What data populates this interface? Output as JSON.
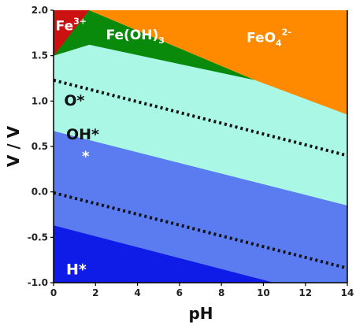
{
  "chart_data": {
    "type": "area",
    "xlabel": "pH",
    "ylabel": "V / V",
    "xlim": [
      0,
      14
    ],
    "ylim": [
      -1.0,
      2.0
    ],
    "x_ticks": [
      0,
      2,
      4,
      6,
      8,
      10,
      12,
      14
    ],
    "y_ticks": [
      -1.0,
      -0.5,
      0.0,
      0.5,
      1.0,
      1.5,
      2.0
    ],
    "x_tick_labels": [
      "0",
      "2",
      "4",
      "6",
      "8",
      "10",
      "12",
      "14"
    ],
    "y_tick_labels": [
      "-1.0",
      "-0.5",
      "0.0",
      "0.5",
      "1.0",
      "1.5",
      "2.0"
    ],
    "regions": [
      {
        "name": "background-region",
        "color": "#5A7CF0",
        "polygon": [
          [
            0,
            -1.0
          ],
          [
            14,
            -1.0
          ],
          [
            14,
            2.0
          ],
          [
            0,
            2.0
          ]
        ]
      },
      {
        "name": "h-star-region",
        "label": "H*",
        "color": "#0F1BE6",
        "polygon": [
          [
            0,
            -0.37
          ],
          [
            10.5,
            -1.0
          ],
          [
            0,
            -1.0
          ]
        ]
      },
      {
        "name": "oh-star-region",
        "label": "OH*",
        "color": "#00FFFF",
        "polygon": [
          [
            0,
            0.83
          ],
          [
            14,
            0.0
          ],
          [
            14,
            2.0
          ],
          [
            0,
            2.0
          ]
        ]
      },
      {
        "name": "o-star-region",
        "label": "O*",
        "color": "#AAF7E6",
        "polygon": [
          [
            0,
            0.67
          ],
          [
            14,
            -0.15
          ],
          [
            14,
            2.0
          ],
          [
            0,
            2.0
          ]
        ]
      },
      {
        "name": "fe3-region",
        "label": "Fe3+",
        "color": "#CC1111",
        "polygon": [
          [
            0,
            1.5
          ],
          [
            1.7,
            1.62
          ],
          [
            1.7,
            2.0
          ],
          [
            0,
            2.0
          ]
        ]
      },
      {
        "name": "feoh3-region",
        "label": "Fe(OH)3",
        "color": "#0A8A0A",
        "polygon": [
          [
            0,
            1.5
          ],
          [
            1.7,
            1.62
          ],
          [
            9.6,
            1.23
          ],
          [
            1.7,
            2.0
          ]
        ]
      },
      {
        "name": "feo4-region",
        "label": "FeO4 2-",
        "color": "#FF8A00",
        "polygon": [
          [
            1.7,
            2.0
          ],
          [
            9.6,
            1.23
          ],
          [
            14,
            0.85
          ],
          [
            14,
            2.0
          ]
        ]
      }
    ],
    "dotted_lines": [
      {
        "name": "upper-dotted-line",
        "x": [
          0,
          14
        ],
        "y": [
          1.23,
          0.4
        ]
      },
      {
        "name": "lower-dotted-line",
        "x": [
          0,
          14
        ],
        "y": [
          -0.01,
          -0.84
        ]
      }
    ],
    "annotations": [
      {
        "name": "fe3-label",
        "base": "Fe",
        "superscript": "3+",
        "x": 0.1,
        "y": 1.78,
        "color": "#ffffff",
        "size": 17
      },
      {
        "name": "feoh3-label",
        "base": "Fe(OH)",
        "subscript": "3",
        "x": 2.5,
        "y": 1.68,
        "color": "#ffffff",
        "size": 17
      },
      {
        "name": "feo4-label",
        "base": "FeO",
        "subscript": "4",
        "superscript": "2-",
        "x": 9.2,
        "y": 1.65,
        "color": "#ffffff",
        "size": 17
      },
      {
        "name": "o-star-label",
        "base": "O*",
        "x": 0.5,
        "y": 0.95,
        "color": "#111111",
        "size": 19
      },
      {
        "name": "oh-star-label",
        "base": "OH*",
        "x": 0.6,
        "y": 0.58,
        "color": "#111111",
        "size": 19
      },
      {
        "name": "star-label",
        "base": "*",
        "x": 1.35,
        "y": 0.34,
        "color": "#ffffff",
        "size": 18
      },
      {
        "name": "h-star-label",
        "base": "H*",
        "x": 0.6,
        "y": -0.91,
        "color": "#ffffff",
        "size": 19
      }
    ]
  }
}
